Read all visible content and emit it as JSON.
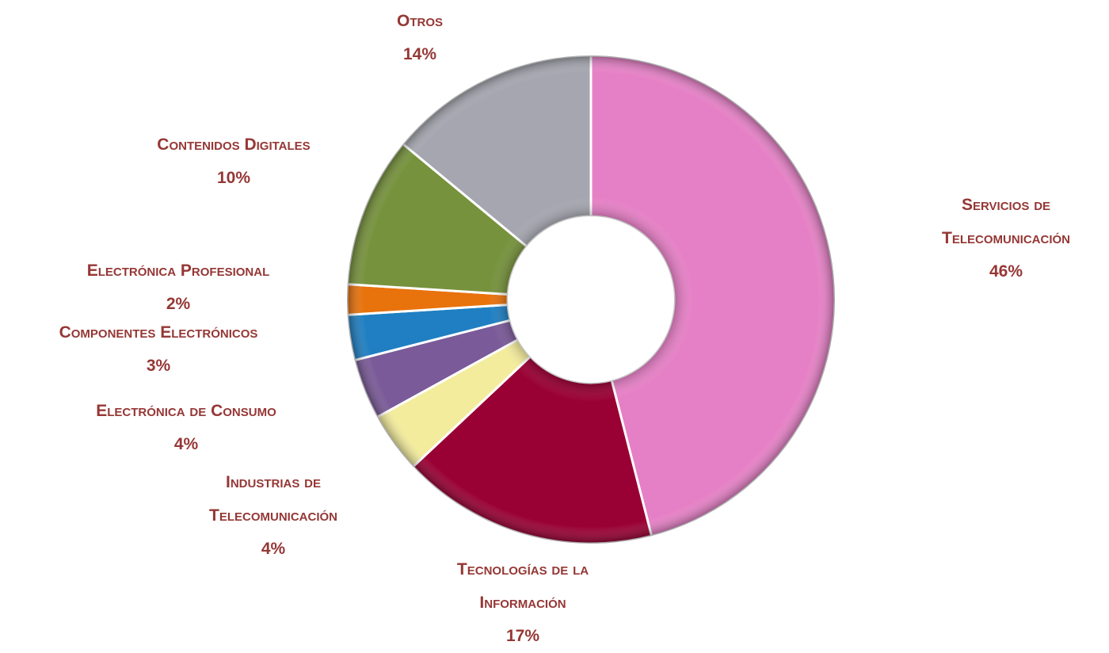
{
  "chart_data": {
    "type": "donut",
    "categories": [
      "Servicios de Telecomunicación",
      "Tecnologías de la Información",
      "Industrias de Telecomunicación",
      "Electrónica de Consumo",
      "Componentes Electrónicos",
      "Electrónica Profesional",
      "Contenidos Digitales",
      "Otros"
    ],
    "values": [
      46,
      17,
      4,
      4,
      3,
      2,
      10,
      14
    ],
    "value_labels": [
      "46%",
      "17%",
      "4%",
      "4%",
      "3%",
      "2%",
      "10%",
      "14%"
    ],
    "colors": [
      "#e680c6",
      "#990033",
      "#f3ec9c",
      "#7a5a98",
      "#1f7fc2",
      "#e8720c",
      "#76923c",
      "#a6a6b0"
    ]
  }
}
